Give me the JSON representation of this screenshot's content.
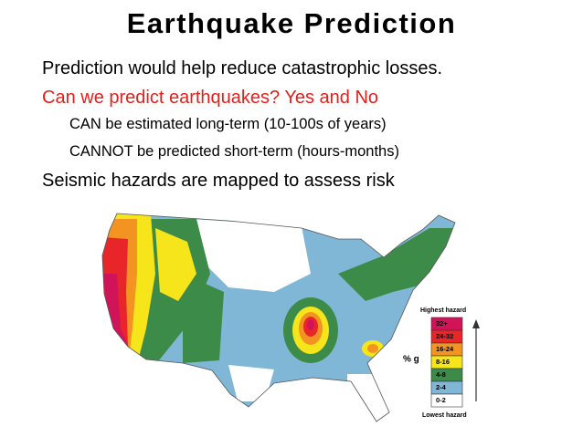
{
  "slide": {
    "title": "Earthquake Prediction",
    "bullets": [
      "Prediction would help reduce catastrophic losses.",
      "Can we predict earthquakes?  Yes and No",
      "CAN be estimated long-term (10-100s of years)",
      "CANNOT be predicted short-term (hours-months)",
      "Seismic hazards are mapped to assess risk"
    ],
    "legend": {
      "top_label": "Highest hazard",
      "bottom_label": "Lowest hazard",
      "unit": "% g",
      "levels": [
        {
          "label": "32+",
          "color": "#d1145a"
        },
        {
          "label": "24-32",
          "color": "#e8262a"
        },
        {
          "label": "16-24",
          "color": "#f39321"
        },
        {
          "label": "8-16",
          "color": "#f7e51b"
        },
        {
          "label": "4-8",
          "color": "#3d8b48"
        },
        {
          "label": "2-4",
          "color": "#80b6d6"
        },
        {
          "label": "0-2",
          "color": "#ffffff"
        }
      ]
    }
  }
}
